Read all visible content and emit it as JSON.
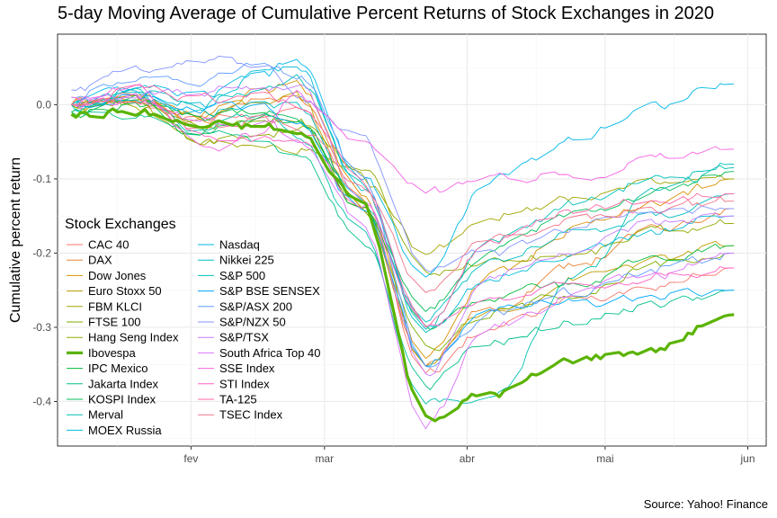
{
  "chart_data": {
    "type": "line",
    "title": "5-day Moving Average of Cumulative Percent Returns of Stock Exchanges in 2020",
    "xlabel": "",
    "ylabel": "Cumulative percent return",
    "caption": "Source: Yahoo! Finance",
    "legend_title": "Stock Exchanges",
    "legend_position": "inside-left",
    "grid": true,
    "x_axis": {
      "type": "date",
      "range": [
        "2020-01-03",
        "2020-06-05"
      ],
      "tick_labels": [
        "fev",
        "mar",
        "abr",
        "mai",
        "jun"
      ]
    },
    "y_axis": {
      "range": [
        -0.46,
        0.095
      ],
      "ticks": [
        0.0,
        -0.1,
        -0.2,
        -0.3,
        -0.4
      ],
      "tick_labels": [
        "0.0",
        "-0.1",
        "-0.2",
        "-0.3",
        "-0.4"
      ]
    },
    "highlight_series": "Ibovespa",
    "series": [
      {
        "name": "CAC 40",
        "color": "#F8766D",
        "values": [
          0.0,
          0.005,
          -0.02,
          -0.01,
          0.0,
          -0.14,
          -0.36,
          -0.3,
          -0.26,
          -0.24,
          -0.22
        ]
      },
      {
        "name": "DAX",
        "color": "#EA8331",
        "values": [
          0.0,
          0.01,
          -0.02,
          0.005,
          0.01,
          -0.13,
          -0.35,
          -0.27,
          -0.21,
          -0.17,
          -0.14
        ]
      },
      {
        "name": "Dow Jones",
        "color": "#D89000",
        "values": [
          0.0,
          0.01,
          -0.01,
          0.02,
          0.03,
          -0.12,
          -0.34,
          -0.23,
          -0.16,
          -0.13,
          -0.1
        ]
      },
      {
        "name": "Euro Stoxx 50",
        "color": "#C09B00",
        "values": [
          0.0,
          0.01,
          -0.02,
          0.0,
          0.01,
          -0.14,
          -0.35,
          -0.28,
          -0.23,
          -0.21,
          -0.19
        ]
      },
      {
        "name": "FBM KLCI",
        "color": "#A3A500",
        "values": [
          0.0,
          -0.005,
          -0.05,
          -0.06,
          -0.06,
          -0.1,
          -0.2,
          -0.15,
          -0.12,
          -0.11,
          -0.1
        ]
      },
      {
        "name": "FTSE 100",
        "color": "#7CAE00",
        "values": [
          0.0,
          0.005,
          -0.03,
          -0.02,
          -0.02,
          -0.14,
          -0.33,
          -0.28,
          -0.25,
          -0.22,
          -0.2
        ]
      },
      {
        "name": "Hang Seng Index",
        "color": "#93AA00",
        "values": [
          0.0,
          0.01,
          -0.05,
          -0.04,
          -0.03,
          -0.08,
          -0.23,
          -0.21,
          -0.2,
          -0.17,
          -0.16
        ]
      },
      {
        "name": "Ibovespa",
        "color": "#5BB300",
        "values": [
          -0.013,
          -0.01,
          -0.03,
          -0.03,
          -0.04,
          -0.13,
          -0.42,
          -0.39,
          -0.34,
          -0.33,
          -0.283
        ]
      },
      {
        "name": "IPC Mexico",
        "color": "#00BA38",
        "values": [
          -0.01,
          0.0,
          -0.02,
          -0.01,
          -0.02,
          -0.14,
          -0.3,
          -0.26,
          -0.24,
          -0.21,
          -0.19
        ]
      },
      {
        "name": "Jakarta Index",
        "color": "#00C08B",
        "values": [
          -0.01,
          -0.01,
          -0.04,
          -0.05,
          -0.07,
          -0.18,
          -0.38,
          -0.32,
          -0.29,
          -0.27,
          -0.25
        ]
      },
      {
        "name": "KOSPI Index",
        "color": "#00BC56",
        "values": [
          -0.01,
          0.01,
          -0.04,
          -0.01,
          -0.03,
          -0.13,
          -0.28,
          -0.2,
          -0.14,
          -0.12,
          -0.09
        ]
      },
      {
        "name": "Merval",
        "color": "#00C0AF",
        "values": [
          0.0,
          0.015,
          -0.03,
          -0.01,
          -0.04,
          -0.17,
          -0.4,
          -0.39,
          -0.22,
          -0.12,
          -0.085
        ]
      },
      {
        "name": "MOEX Russia",
        "color": "#00BCD8",
        "values": [
          0.0,
          0.02,
          0.0,
          0.04,
          0.05,
          -0.11,
          -0.3,
          -0.23,
          -0.2,
          -0.17,
          -0.15
        ]
      },
      {
        "name": "Nasdaq",
        "color": "#00B8E7",
        "values": [
          0.0,
          0.02,
          0.01,
          0.04,
          0.06,
          -0.1,
          -0.23,
          -0.1,
          -0.04,
          0.0,
          0.028
        ]
      },
      {
        "name": "Nikkei 225",
        "color": "#00BFC4",
        "values": [
          0.0,
          0.01,
          -0.01,
          0.0,
          0.0,
          -0.13,
          -0.29,
          -0.21,
          -0.17,
          -0.15,
          -0.12
        ]
      },
      {
        "name": "S&P 500",
        "color": "#00C0B8",
        "values": [
          0.0,
          0.015,
          0.0,
          0.02,
          0.04,
          -0.11,
          -0.3,
          -0.18,
          -0.13,
          -0.1,
          -0.08
        ]
      },
      {
        "name": "S&P BSE SENSEX",
        "color": "#00A9FF",
        "values": [
          0.0,
          0.01,
          -0.01,
          0.0,
          -0.03,
          -0.14,
          -0.35,
          -0.27,
          -0.27,
          -0.26,
          -0.25
        ]
      },
      {
        "name": "S&P/ASX 200",
        "color": "#619CFF",
        "values": [
          0.01,
          0.04,
          0.03,
          0.05,
          0.04,
          -0.1,
          -0.35,
          -0.28,
          -0.25,
          -0.22,
          -0.2
        ]
      },
      {
        "name": "S&P/NZX 50",
        "color": "#8494FF",
        "values": [
          0.02,
          0.05,
          0.06,
          0.05,
          0.01,
          -0.05,
          -0.22,
          -0.2,
          -0.16,
          -0.15,
          -0.14
        ]
      },
      {
        "name": "S&P/TSX",
        "color": "#C77CFF",
        "values": [
          0.0,
          0.01,
          0.02,
          0.02,
          0.03,
          -0.12,
          -0.36,
          -0.23,
          -0.19,
          -0.16,
          -0.15
        ]
      },
      {
        "name": "South Africa Top 40",
        "color": "#DB72FB",
        "values": [
          0.0,
          0.01,
          -0.02,
          -0.02,
          -0.05,
          -0.16,
          -0.43,
          -0.3,
          -0.25,
          -0.23,
          -0.2
        ]
      },
      {
        "name": "SSE Index",
        "color": "#F564E3",
        "values": [
          0.01,
          0.03,
          -0.06,
          -0.04,
          0.01,
          -0.05,
          -0.12,
          -0.1,
          -0.09,
          -0.07,
          -0.06
        ]
      },
      {
        "name": "STI Index",
        "color": "#FF61C3",
        "values": [
          0.0,
          0.01,
          -0.04,
          -0.04,
          -0.05,
          -0.13,
          -0.3,
          -0.26,
          -0.24,
          -0.23,
          -0.22
        ]
      },
      {
        "name": "TA-125",
        "color": "#FF67A4",
        "values": [
          0.0,
          0.02,
          0.01,
          0.01,
          0.0,
          -0.1,
          -0.3,
          -0.18,
          -0.14,
          -0.13,
          -0.12
        ]
      },
      {
        "name": "TSEC Index",
        "color": "#F0738A",
        "values": [
          0.0,
          0.01,
          -0.03,
          -0.02,
          -0.03,
          -0.11,
          -0.25,
          -0.18,
          -0.15,
          -0.14,
          -0.13
        ]
      }
    ],
    "x": [
      "2020-01-06",
      "2020-01-20",
      "2020-02-03",
      "2020-02-17",
      "2020-02-24",
      "2020-03-09",
      "2020-03-23",
      "2020-04-06",
      "2020-04-27",
      "2020-05-11",
      "2020-05-29"
    ]
  }
}
